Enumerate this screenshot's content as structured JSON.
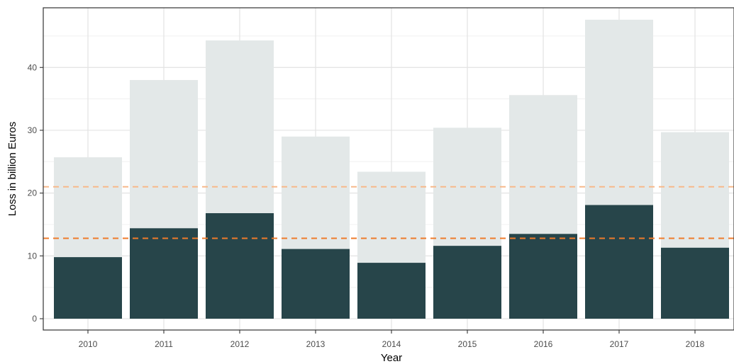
{
  "chart_data": {
    "type": "bar",
    "title": "",
    "xlabel": "Year",
    "ylabel": "Loss in billion Euros",
    "categories": [
      "2010",
      "2011",
      "2012",
      "2013",
      "2014",
      "2015",
      "2016",
      "2017",
      "2018"
    ],
    "series": [
      {
        "values": [
          25.7,
          38.0,
          44.3,
          29.0,
          23.4,
          30.4,
          35.6,
          47.6,
          29.7
        ],
        "color": "#e3e8e8"
      },
      {
        "values": [
          9.8,
          14.4,
          16.8,
          11.1,
          8.9,
          11.6,
          13.5,
          18.1,
          11.3
        ],
        "color": "#27454a"
      }
    ],
    "reference_lines": [
      {
        "value": 21.0,
        "color": "#f7b98b",
        "style": "dashed"
      },
      {
        "value": 12.8,
        "color": "#ef7b2b",
        "style": "dashed"
      }
    ],
    "y_ticks": [
      0,
      10,
      20,
      30,
      40
    ],
    "ylim": [
      -1.8,
      49.5
    ],
    "grid": true,
    "legend": "none"
  }
}
